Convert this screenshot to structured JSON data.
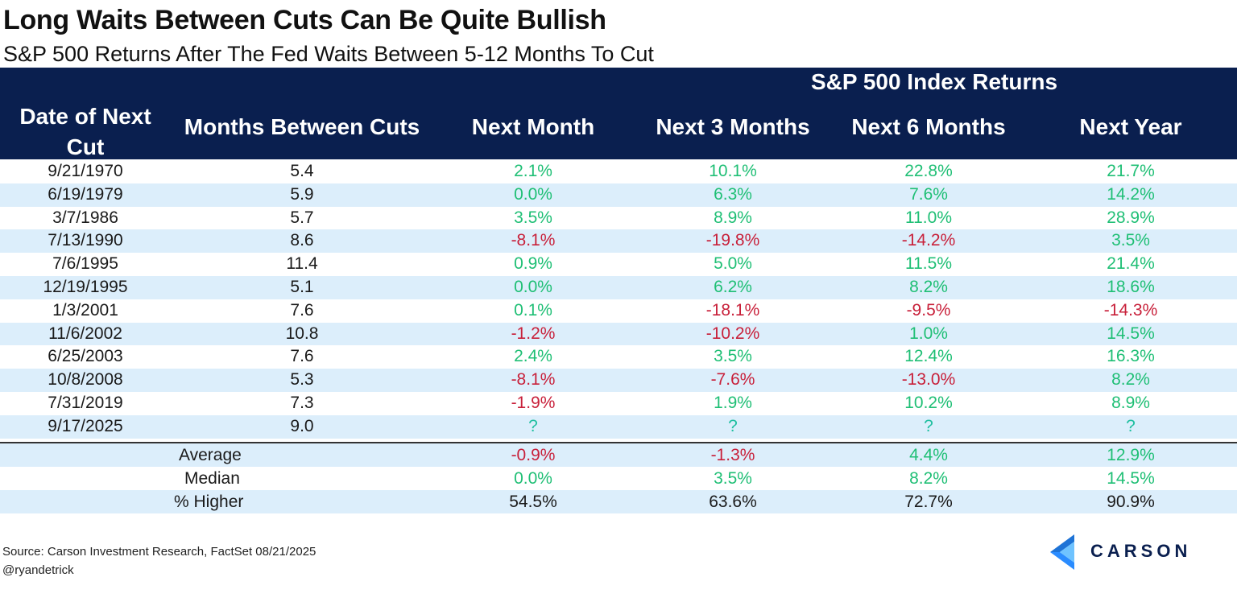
{
  "title": "Long Waits Between Cuts Can Be Quite Bullish",
  "subtitle": "S&P 500 Returns After The Fed Waits Between 5-12 Months To Cut",
  "header": {
    "group": "S&P 500 Index Returns",
    "date": "Date of Next Cut",
    "months": "Months Between Cuts",
    "next_month": "Next Month",
    "next_3": "Next 3 Months",
    "next_6": "Next 6 Months",
    "next_year": "Next Year"
  },
  "rows": [
    {
      "date": "9/21/1970",
      "months": "5.4",
      "m1": "2.1%",
      "m3": "10.1%",
      "m6": "22.8%",
      "y1": "21.7%"
    },
    {
      "date": "6/19/1979",
      "months": "5.9",
      "m1": "0.0%",
      "m3": "6.3%",
      "m6": "7.6%",
      "y1": "14.2%"
    },
    {
      "date": "3/7/1986",
      "months": "5.7",
      "m1": "3.5%",
      "m3": "8.9%",
      "m6": "11.0%",
      "y1": "28.9%"
    },
    {
      "date": "7/13/1990",
      "months": "8.6",
      "m1": "-8.1%",
      "m3": "-19.8%",
      "m6": "-14.2%",
      "y1": "3.5%"
    },
    {
      "date": "7/6/1995",
      "months": "11.4",
      "m1": "0.9%",
      "m3": "5.0%",
      "m6": "11.5%",
      "y1": "21.4%"
    },
    {
      "date": "12/19/1995",
      "months": "5.1",
      "m1": "0.0%",
      "m3": "6.2%",
      "m6": "8.2%",
      "y1": "18.6%"
    },
    {
      "date": "1/3/2001",
      "months": "7.6",
      "m1": "0.1%",
      "m3": "-18.1%",
      "m6": "-9.5%",
      "y1": "-14.3%"
    },
    {
      "date": "11/6/2002",
      "months": "10.8",
      "m1": "-1.2%",
      "m3": "-10.2%",
      "m6": "1.0%",
      "y1": "14.5%"
    },
    {
      "date": "6/25/2003",
      "months": "7.6",
      "m1": "2.4%",
      "m3": "3.5%",
      "m6": "12.4%",
      "y1": "16.3%"
    },
    {
      "date": "10/8/2008",
      "months": "5.3",
      "m1": "-8.1%",
      "m3": "-7.6%",
      "m6": "-13.0%",
      "y1": "8.2%"
    },
    {
      "date": "7/31/2019",
      "months": "7.3",
      "m1": "-1.9%",
      "m3": "1.9%",
      "m6": "10.2%",
      "y1": "8.9%"
    },
    {
      "date": "9/17/2025",
      "months": "9.0",
      "m1": "?",
      "m3": "?",
      "m6": "?",
      "y1": "?"
    }
  ],
  "summary": [
    {
      "label": "Average",
      "m1": "-0.9%",
      "m3": "-1.3%",
      "m6": "4.4%",
      "y1": "12.9%"
    },
    {
      "label": "Median",
      "m1": "0.0%",
      "m3": "3.5%",
      "m6": "8.2%",
      "y1": "14.5%"
    },
    {
      "label": "% Higher",
      "m1": "54.5%",
      "m3": "63.6%",
      "m6": "72.7%",
      "y1": "90.9%"
    }
  ],
  "footer": {
    "source": "Source: Carson Investment Research, FactSet 08/21/2025",
    "handle": "@ryandetrick"
  },
  "logo": {
    "text": "CARSON",
    "icon": "carson-chevron-icon"
  },
  "colors": {
    "header_bg": "#0a1f4f",
    "positive": "#1fbf75",
    "negative": "#c8203a",
    "stripe": "#dceefb"
  }
}
